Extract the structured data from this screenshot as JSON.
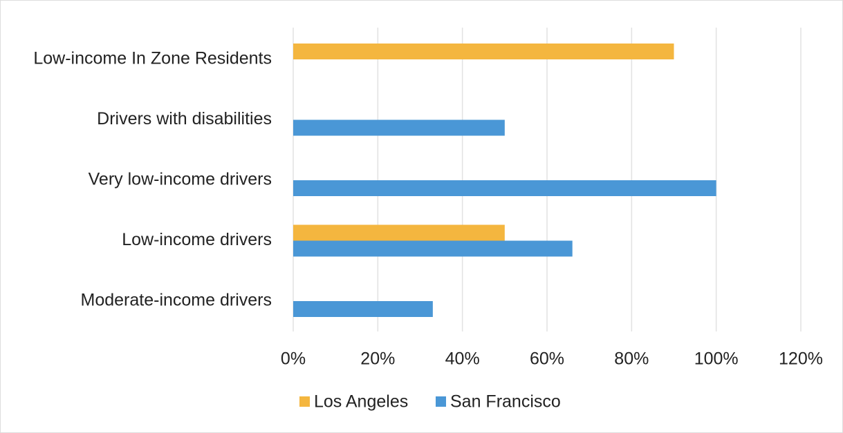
{
  "chart_data": {
    "type": "hbar",
    "categories": [
      "Low-income In Zone Residents",
      "Drivers with disabilities",
      "Very low-income drivers",
      "Low-income drivers",
      "Moderate-income drivers"
    ],
    "series": [
      {
        "name": "Los Angeles",
        "color": "#f4b63f",
        "values": [
          90,
          null,
          null,
          50,
          null
        ]
      },
      {
        "name": "San Francisco",
        "color": "#4a97d6",
        "values": [
          null,
          50,
          100,
          66,
          33
        ]
      }
    ],
    "xlim": [
      0,
      120
    ],
    "xticks": [
      {
        "value": 0,
        "label": "0%"
      },
      {
        "value": 20,
        "label": "20%"
      },
      {
        "value": 40,
        "label": "40%"
      },
      {
        "value": 60,
        "label": "60%"
      },
      {
        "value": 80,
        "label": "80%"
      },
      {
        "value": 100,
        "label": "100%"
      },
      {
        "value": 120,
        "label": "120%"
      }
    ],
    "grid": true,
    "legend": "bottom"
  }
}
